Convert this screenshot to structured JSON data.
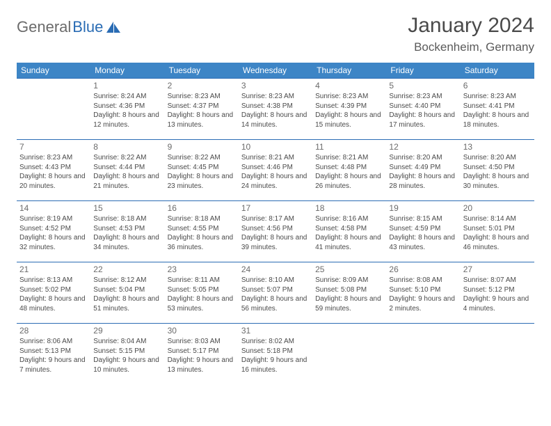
{
  "brand": {
    "part1": "General",
    "part2": "Blue"
  },
  "title": "January 2024",
  "location": "Bockenheim, Germany",
  "colors": {
    "header_bg": "#3d85c6",
    "header_text": "#ffffff",
    "row_border": "#2a6cb4",
    "text": "#404040",
    "logo_gray": "#6b6b6b",
    "logo_blue": "#2a6cb4",
    "background": "#ffffff"
  },
  "day_headers": [
    "Sunday",
    "Monday",
    "Tuesday",
    "Wednesday",
    "Thursday",
    "Friday",
    "Saturday"
  ],
  "labels": {
    "sunrise": "Sunrise:",
    "sunset": "Sunset:",
    "daylight": "Daylight:"
  },
  "days": [
    {
      "n": 1,
      "sr": "8:24 AM",
      "ss": "4:36 PM",
      "dl": "8 hours and 12 minutes."
    },
    {
      "n": 2,
      "sr": "8:23 AM",
      "ss": "4:37 PM",
      "dl": "8 hours and 13 minutes."
    },
    {
      "n": 3,
      "sr": "8:23 AM",
      "ss": "4:38 PM",
      "dl": "8 hours and 14 minutes."
    },
    {
      "n": 4,
      "sr": "8:23 AM",
      "ss": "4:39 PM",
      "dl": "8 hours and 15 minutes."
    },
    {
      "n": 5,
      "sr": "8:23 AM",
      "ss": "4:40 PM",
      "dl": "8 hours and 17 minutes."
    },
    {
      "n": 6,
      "sr": "8:23 AM",
      "ss": "4:41 PM",
      "dl": "8 hours and 18 minutes."
    },
    {
      "n": 7,
      "sr": "8:23 AM",
      "ss": "4:43 PM",
      "dl": "8 hours and 20 minutes."
    },
    {
      "n": 8,
      "sr": "8:22 AM",
      "ss": "4:44 PM",
      "dl": "8 hours and 21 minutes."
    },
    {
      "n": 9,
      "sr": "8:22 AM",
      "ss": "4:45 PM",
      "dl": "8 hours and 23 minutes."
    },
    {
      "n": 10,
      "sr": "8:21 AM",
      "ss": "4:46 PM",
      "dl": "8 hours and 24 minutes."
    },
    {
      "n": 11,
      "sr": "8:21 AM",
      "ss": "4:48 PM",
      "dl": "8 hours and 26 minutes."
    },
    {
      "n": 12,
      "sr": "8:20 AM",
      "ss": "4:49 PM",
      "dl": "8 hours and 28 minutes."
    },
    {
      "n": 13,
      "sr": "8:20 AM",
      "ss": "4:50 PM",
      "dl": "8 hours and 30 minutes."
    },
    {
      "n": 14,
      "sr": "8:19 AM",
      "ss": "4:52 PM",
      "dl": "8 hours and 32 minutes."
    },
    {
      "n": 15,
      "sr": "8:18 AM",
      "ss": "4:53 PM",
      "dl": "8 hours and 34 minutes."
    },
    {
      "n": 16,
      "sr": "8:18 AM",
      "ss": "4:55 PM",
      "dl": "8 hours and 36 minutes."
    },
    {
      "n": 17,
      "sr": "8:17 AM",
      "ss": "4:56 PM",
      "dl": "8 hours and 39 minutes."
    },
    {
      "n": 18,
      "sr": "8:16 AM",
      "ss": "4:58 PM",
      "dl": "8 hours and 41 minutes."
    },
    {
      "n": 19,
      "sr": "8:15 AM",
      "ss": "4:59 PM",
      "dl": "8 hours and 43 minutes."
    },
    {
      "n": 20,
      "sr": "8:14 AM",
      "ss": "5:01 PM",
      "dl": "8 hours and 46 minutes."
    },
    {
      "n": 21,
      "sr": "8:13 AM",
      "ss": "5:02 PM",
      "dl": "8 hours and 48 minutes."
    },
    {
      "n": 22,
      "sr": "8:12 AM",
      "ss": "5:04 PM",
      "dl": "8 hours and 51 minutes."
    },
    {
      "n": 23,
      "sr": "8:11 AM",
      "ss": "5:05 PM",
      "dl": "8 hours and 53 minutes."
    },
    {
      "n": 24,
      "sr": "8:10 AM",
      "ss": "5:07 PM",
      "dl": "8 hours and 56 minutes."
    },
    {
      "n": 25,
      "sr": "8:09 AM",
      "ss": "5:08 PM",
      "dl": "8 hours and 59 minutes."
    },
    {
      "n": 26,
      "sr": "8:08 AM",
      "ss": "5:10 PM",
      "dl": "9 hours and 2 minutes."
    },
    {
      "n": 27,
      "sr": "8:07 AM",
      "ss": "5:12 PM",
      "dl": "9 hours and 4 minutes."
    },
    {
      "n": 28,
      "sr": "8:06 AM",
      "ss": "5:13 PM",
      "dl": "9 hours and 7 minutes."
    },
    {
      "n": 29,
      "sr": "8:04 AM",
      "ss": "5:15 PM",
      "dl": "9 hours and 10 minutes."
    },
    {
      "n": 30,
      "sr": "8:03 AM",
      "ss": "5:17 PM",
      "dl": "9 hours and 13 minutes."
    },
    {
      "n": 31,
      "sr": "8:02 AM",
      "ss": "5:18 PM",
      "dl": "9 hours and 16 minutes."
    }
  ],
  "layout": {
    "first_weekday_offset": 1,
    "rows": 5,
    "cols": 7
  }
}
